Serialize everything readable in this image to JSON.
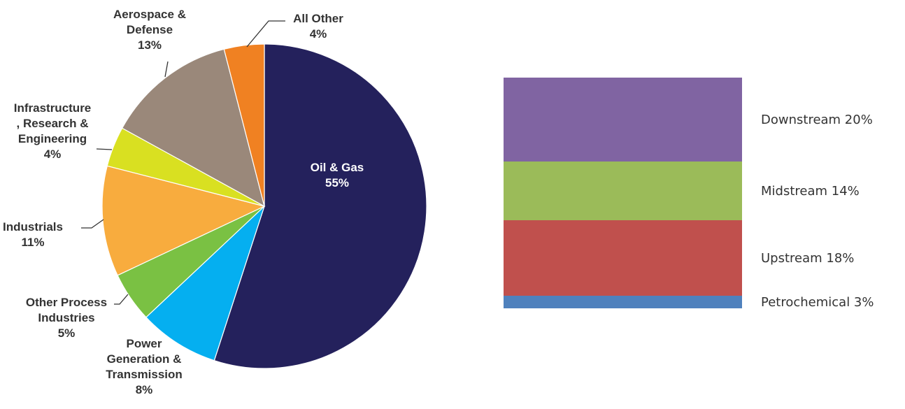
{
  "chart_data": [
    {
      "type": "pie",
      "start": "12 o'clock, clockwise",
      "slices": [
        {
          "label": [
            "Oil & Gas",
            "55%"
          ],
          "value": 55,
          "color": "#24215c"
        },
        {
          "label": [
            "Power",
            "Generation &",
            "Transmission",
            "8%"
          ],
          "value": 8,
          "color": "#05aff0"
        },
        {
          "label": [
            "Other Process",
            "Industries",
            "5%"
          ],
          "value": 5,
          "color": "#7ac143"
        },
        {
          "label": [
            "Industrials",
            "11%"
          ],
          "value": 11,
          "color": "#f8ac3e"
        },
        {
          "label": [
            "Infrastructure",
            ", Research &",
            "Engineering",
            "4%"
          ],
          "value": 4,
          "color": "#d9e021"
        },
        {
          "label": [
            "Aerospace &",
            "Defense",
            "13%"
          ],
          "value": 13,
          "color": "#9a887a"
        },
        {
          "label": [
            "All Other",
            "4%"
          ],
          "value": 4,
          "color": "#f08122"
        }
      ]
    },
    {
      "type": "bar",
      "stacked": true,
      "segments": [
        {
          "label": "Downstream 20%",
          "value": 20,
          "color": "#8064a2"
        },
        {
          "label": "Midstream 14%",
          "value": 14,
          "color": "#9bbb59"
        },
        {
          "label": "Upstream 18%",
          "value": 18,
          "color": "#c0504d"
        },
        {
          "label": "Petrochemical 3%",
          "value": 3,
          "color": "#4f81bd"
        }
      ]
    }
  ]
}
